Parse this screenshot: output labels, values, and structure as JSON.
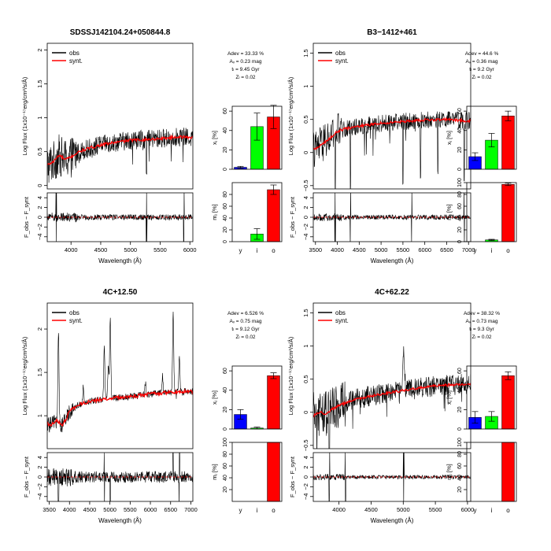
{
  "chart_data": [
    {
      "type": "line",
      "title": "SDSSJ142104.24+050844.8",
      "xlabel": "Wavelength (Å)",
      "ylabel": "Log Flux (1x10⁻¹⁷erg/cm²/s/Å)",
      "resid_label": "F_obs − F_synt",
      "xlim": [
        3600,
        6050
      ],
      "xticks": [
        4000,
        4500,
        5000,
        5500,
        6000
      ],
      "ylim": [
        -0.05,
        2.1
      ],
      "yticks": [
        "0",
        "0.5",
        "1",
        "1.5",
        "2"
      ],
      "resid_ylim": [
        -5,
        5
      ],
      "resid_yticks": [
        "−4",
        "−2",
        "0",
        "2",
        "4"
      ],
      "legend": [
        "obs",
        "synt."
      ],
      "colors": {
        "obs": "#000000",
        "synt": "#ff0000"
      },
      "synt_curve": {
        "x": [
          3600,
          3700,
          3800,
          3900,
          4000,
          4100,
          4200,
          4300,
          4500,
          4700,
          5000,
          5300,
          5600,
          5800,
          6000
        ],
        "y": [
          0.3,
          0.35,
          0.45,
          0.38,
          0.42,
          0.48,
          0.52,
          0.55,
          0.6,
          0.63,
          0.67,
          0.68,
          0.7,
          0.72,
          0.71
        ]
      },
      "obs_noise": {
        "amp": 0.14,
        "low": 0.35,
        "emission": [],
        "absorption": [
          5270
        ]
      },
      "resid_noise": {
        "amp": 0.6,
        "spikes": [
          3750,
          5270,
          5900
        ]
      },
      "stats": [
        "Adev = 33.33 %",
        "Aᵥ = 0.23 mag",
        "tₗ = 9.45 Gyr",
        "Zₗ = 0.02"
      ],
      "categories": [
        "y",
        "i",
        "o"
      ],
      "bar_colors": [
        "#0000ff",
        "#00ff00",
        "#ff0000"
      ],
      "xj": {
        "label": "xⱼ [%]",
        "ylim": [
          0,
          65
        ],
        "yticks": [
          0,
          20,
          40,
          60
        ],
        "values": [
          2,
          44,
          54
        ],
        "errors": [
          1,
          14,
          12
        ]
      },
      "mj": {
        "label": "mⱼ [%]",
        "ylim": [
          0,
          100
        ],
        "yticks": [
          0,
          20,
          40,
          60,
          80
        ],
        "values": [
          0,
          13,
          88
        ],
        "errors": [
          0,
          9,
          8
        ]
      }
    },
    {
      "type": "line",
      "title": "B3−1412+461",
      "xlabel": "Wavelength (Å)",
      "ylabel": "Log Flux (1x10⁻¹⁷erg/cm²/s/Å)",
      "resid_label": "F_obs − F_synt",
      "xlim": [
        3450,
        7050
      ],
      "xticks": [
        3500,
        4000,
        4500,
        5000,
        5500,
        6000,
        6500,
        7000
      ],
      "ylim": [
        -0.55,
        1.65
      ],
      "yticks": [
        "−0.5",
        "0",
        "0.5",
        "1",
        "1.5"
      ],
      "resid_ylim": [
        -5,
        5
      ],
      "resid_yticks": [
        "−4",
        "−2",
        "0",
        "2",
        "4"
      ],
      "legend": [
        "obs",
        "synt."
      ],
      "colors": {
        "obs": "#000000",
        "synt": "#ff0000"
      },
      "synt_curve": {
        "x": [
          3500,
          3700,
          3900,
          4000,
          4200,
          4500,
          5000,
          5500,
          6000,
          6500,
          6900
        ],
        "y": [
          0.05,
          0.15,
          0.25,
          0.32,
          0.36,
          0.4,
          0.44,
          0.47,
          0.49,
          0.5,
          0.48
        ]
      },
      "obs_noise": {
        "amp": 0.13,
        "low": 0.55,
        "emission": [],
        "absorption": [
          3950,
          4300,
          5500,
          5900,
          6300,
          6900
        ]
      },
      "resid_noise": {
        "amp": 0.5,
        "spikes": [
          3950,
          4300,
          5700,
          6900
        ]
      },
      "stats": [
        "Adev = 44.6 %",
        "Aᵥ = 0.36 mag",
        "tₗ = 9.2 Gyr",
        "Zₗ = 0.02"
      ],
      "categories": [
        "y",
        "i",
        "o"
      ],
      "bar_colors": [
        "#0000ff",
        "#00ff00",
        "#ff0000"
      ],
      "xj": {
        "label": "xⱼ [%]",
        "ylim": [
          0,
          65
        ],
        "yticks": [
          0,
          20,
          40,
          60
        ],
        "values": [
          13,
          30,
          55
        ],
        "errors": [
          4,
          7,
          5
        ]
      },
      "mj": {
        "label": "mⱼ [%]",
        "ylim": [
          0,
          100
        ],
        "yticks": [
          0,
          20,
          40,
          60,
          80,
          100
        ],
        "values": [
          0,
          3,
          97
        ],
        "errors": [
          0,
          1,
          2
        ]
      }
    },
    {
      "type": "line",
      "title": "4C+12.50",
      "xlabel": "Wavelength (Å)",
      "ylabel": "Log Flux (1x10⁻¹⁷erg/cm²/s/Å)",
      "resid_label": "F_obs − F_synt",
      "xlim": [
        3450,
        7050
      ],
      "xticks": [
        3500,
        4000,
        4500,
        5000,
        5500,
        6000,
        6500,
        7000
      ],
      "ylim": [
        0.62,
        2.3
      ],
      "yticks": [
        "1",
        "1.5",
        "2"
      ],
      "resid_ylim": [
        -5,
        5
      ],
      "resid_yticks": [
        "−4",
        "−2",
        "0",
        "2",
        "4"
      ],
      "legend": [
        "obs",
        "synt."
      ],
      "colors": {
        "obs": "#000000",
        "synt": "#ff0000"
      },
      "synt_curve": {
        "x": [
          3550,
          3700,
          3800,
          3900,
          4000,
          4200,
          4500,
          5000,
          5500,
          6000,
          6500,
          6900
        ],
        "y": [
          0.9,
          0.95,
          0.88,
          0.95,
          1.05,
          1.12,
          1.17,
          1.2,
          1.22,
          1.25,
          1.27,
          1.28
        ]
      },
      "obs_noise": {
        "amp": 0.04,
        "low": 0.1,
        "emission": [
          [
            3727,
            1.1
          ],
          [
            4340,
            0.2
          ],
          [
            4861,
            0.6
          ],
          [
            4959,
            0.35
          ],
          [
            5007,
            0.95
          ],
          [
            5876,
            0.15
          ],
          [
            6300,
            0.2
          ],
          [
            6563,
            0.9
          ],
          [
            6717,
            0.4
          ]
        ],
        "absorption": []
      },
      "resid_noise": {
        "amp": 1.2,
        "spikes": [
          3727,
          4861,
          5007,
          6563,
          6717
        ]
      },
      "stats": [
        "Adev = 6.526 %",
        "Aᵥ = 0.75 mag",
        "tₗ = 9.12 Gyr",
        "Zₗ = 0.02"
      ],
      "categories": [
        "y",
        "i",
        "o"
      ],
      "bar_colors": [
        "#0000ff",
        "#00ff00",
        "#ff0000"
      ],
      "xj": {
        "label": "xⱼ [%]",
        "ylim": [
          0,
          65
        ],
        "yticks": [
          0,
          20,
          40,
          60
        ],
        "values": [
          15,
          1,
          55
        ],
        "errors": [
          5,
          1,
          3
        ]
      },
      "mj": {
        "label": "mⱼ [%]",
        "ylim": [
          0,
          100
        ],
        "yticks": [
          20,
          40,
          60,
          80,
          100
        ],
        "values": [
          0,
          0,
          100
        ],
        "errors": [
          0,
          0,
          0
        ]
      }
    },
    {
      "type": "line",
      "title": "4C+62.22",
      "xlabel": "Wavelength (Å)",
      "ylabel": "Log Flux (1x10⁻¹⁷erg/cm²/s/Å)",
      "resid_label": "F_obs − F_synt",
      "xlim": [
        3600,
        6050
      ],
      "xticks": [
        4000,
        4500,
        5000,
        5500,
        6000
      ],
      "ylim": [
        -0.55,
        1.65
      ],
      "yticks": [
        "−0.5",
        "0",
        "0.5",
        "1",
        "1.5"
      ],
      "resid_ylim": [
        -5,
        5
      ],
      "resid_yticks": [
        "−4",
        "−2",
        "0",
        "2",
        "4"
      ],
      "legend": [
        "obs",
        "synt."
      ],
      "colors": {
        "obs": "#000000",
        "synt": "#ff0000"
      },
      "synt_curve": {
        "x": [
          3600,
          3700,
          3800,
          3900,
          4000,
          4200,
          4500,
          5000,
          5500,
          6000
        ],
        "y": [
          -0.05,
          0.0,
          -0.02,
          0.05,
          0.1,
          0.18,
          0.25,
          0.33,
          0.4,
          0.43
        ]
      },
      "obs_noise": {
        "amp": 0.16,
        "low": 0.5,
        "emission": [
          [
            5007,
            0.6
          ]
        ],
        "absorption": [
          3850
        ]
      },
      "resid_noise": {
        "amp": 0.4,
        "spikes": [
          3850,
          4100,
          5007
        ]
      },
      "stats": [
        "Adev = 38.32 %",
        "Aᵥ = 0.73 mag",
        "tₗ = 9.3 Gyr",
        "Zₗ = 0.02"
      ],
      "categories": [
        "y",
        "i",
        "o"
      ],
      "bar_colors": [
        "#0000ff",
        "#00ff00",
        "#ff0000"
      ],
      "xj": {
        "label": "xⱼ [%]",
        "ylim": [
          0,
          65
        ],
        "yticks": [
          0,
          20,
          40,
          60
        ],
        "values": [
          12,
          13,
          55
        ],
        "errors": [
          6,
          5,
          4
        ]
      },
      "mj": {
        "label": "mⱼ [%]",
        "ylim": [
          0,
          100
        ],
        "yticks": [
          20,
          40,
          60,
          80,
          100
        ],
        "values": [
          0,
          0,
          100
        ],
        "errors": [
          0,
          0,
          0
        ]
      }
    }
  ]
}
